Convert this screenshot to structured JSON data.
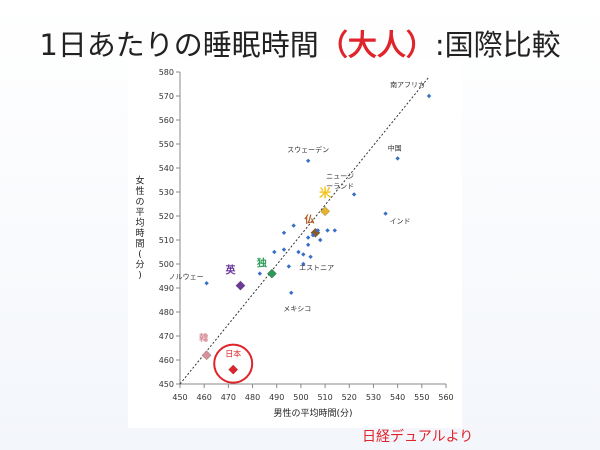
{
  "title": {
    "prefix": "1日あたりの睡眠時間",
    "paren_open": "（",
    "highlight": "大人",
    "paren_close": "）",
    "suffix": ":国際比較"
  },
  "source": "日経デュアルより",
  "colors": {
    "accent": "#e0242b",
    "default_point": "#3a6fc6",
    "guide_line": "#333333"
  },
  "chart_data": {
    "type": "scatter",
    "title": "",
    "xlabel": "男性の平均時間(分)",
    "ylabel": "女性の平均時間(分)",
    "xlim": [
      450,
      560
    ],
    "ylim": [
      450,
      580
    ],
    "xticks": [
      450,
      460,
      470,
      480,
      490,
      500,
      510,
      520,
      530,
      540,
      550,
      560
    ],
    "yticks": [
      450,
      460,
      470,
      480,
      490,
      500,
      510,
      520,
      530,
      540,
      550,
      560,
      570,
      580
    ],
    "grid": false,
    "reference_line": {
      "from": [
        450,
        450
      ],
      "to": [
        553,
        578
      ],
      "style": "dotted"
    },
    "points": [
      {
        "x": 553,
        "y": 570,
        "label": "南アフリカ",
        "color": "#3a6fc6",
        "shape": "diamond-small"
      },
      {
        "x": 540,
        "y": 544,
        "label": "中国",
        "color": "#3a6fc6",
        "shape": "diamond-small"
      },
      {
        "x": 503,
        "y": 543,
        "label": "スウェーデン",
        "color": "#3a6fc6",
        "shape": "diamond-small"
      },
      {
        "x": 522,
        "y": 529,
        "label": "ニュージーランド",
        "color": "#3a6fc6",
        "shape": "diamond-small"
      },
      {
        "x": 535,
        "y": 521,
        "label": "インド",
        "color": "#3a6fc6",
        "shape": "diamond-small"
      },
      {
        "x": 504,
        "y": 503,
        "label": "エストニア",
        "color": "#3a6fc6",
        "shape": "diamond-small"
      },
      {
        "x": 461,
        "y": 492,
        "label": "ノルウェー",
        "color": "#3a6fc6",
        "shape": "diamond-small"
      },
      {
        "x": 496,
        "y": 488,
        "label": "メキシコ",
        "color": "#3a6fc6",
        "shape": "diamond-small"
      },
      {
        "x": 510,
        "y": 522,
        "label": "米",
        "color": "#e6b32e",
        "shape": "diamond"
      },
      {
        "x": 506,
        "y": 513,
        "label": "仏",
        "color": "#8a5a22",
        "shape": "diamond"
      },
      {
        "x": 488,
        "y": 496,
        "label": "独",
        "color": "#2e9a57",
        "shape": "diamond"
      },
      {
        "x": 475,
        "y": 491,
        "label": "英",
        "color": "#6b3a9a",
        "shape": "diamond"
      },
      {
        "x": 461,
        "y": 462,
        "label": "韓",
        "color": "#d8909a",
        "shape": "diamond"
      },
      {
        "x": 472,
        "y": 456,
        "label": "日本",
        "color": "#e0242b",
        "shape": "diamond"
      },
      {
        "x": 493,
        "y": 513,
        "label": "",
        "color": "#3a6fc6",
        "shape": "diamond-small"
      },
      {
        "x": 497,
        "y": 516,
        "label": "",
        "color": "#3a6fc6",
        "shape": "diamond-small"
      },
      {
        "x": 489,
        "y": 505,
        "label": "",
        "color": "#3a6fc6",
        "shape": "diamond-small"
      },
      {
        "x": 493,
        "y": 506,
        "label": "",
        "color": "#3a6fc6",
        "shape": "diamond-small"
      },
      {
        "x": 499,
        "y": 505,
        "label": "",
        "color": "#3a6fc6",
        "shape": "diamond-small"
      },
      {
        "x": 501,
        "y": 504,
        "label": "",
        "color": "#3a6fc6",
        "shape": "diamond-small"
      },
      {
        "x": 503,
        "y": 508,
        "label": "",
        "color": "#3a6fc6",
        "shape": "diamond-small"
      },
      {
        "x": 503,
        "y": 511,
        "label": "",
        "color": "#3a6fc6",
        "shape": "diamond-small"
      },
      {
        "x": 505,
        "y": 512,
        "label": "",
        "color": "#3a6fc6",
        "shape": "diamond-small"
      },
      {
        "x": 507,
        "y": 514,
        "label": "",
        "color": "#3a6fc6",
        "shape": "diamond-small"
      },
      {
        "x": 508,
        "y": 510,
        "label": "",
        "color": "#3a6fc6",
        "shape": "diamond-small"
      },
      {
        "x": 511,
        "y": 514,
        "label": "",
        "color": "#3a6fc6",
        "shape": "diamond-small"
      },
      {
        "x": 514,
        "y": 514,
        "label": "",
        "color": "#3a6fc6",
        "shape": "diamond-small"
      },
      {
        "x": 495,
        "y": 499,
        "label": "",
        "color": "#3a6fc6",
        "shape": "diamond-small"
      },
      {
        "x": 483,
        "y": 496,
        "label": "",
        "color": "#3a6fc6",
        "shape": "diamond-small"
      },
      {
        "x": 501,
        "y": 500,
        "label": "",
        "color": "#3a6fc6",
        "shape": "diamond-small"
      }
    ],
    "highlight_circle": {
      "label": "日本"
    }
  }
}
